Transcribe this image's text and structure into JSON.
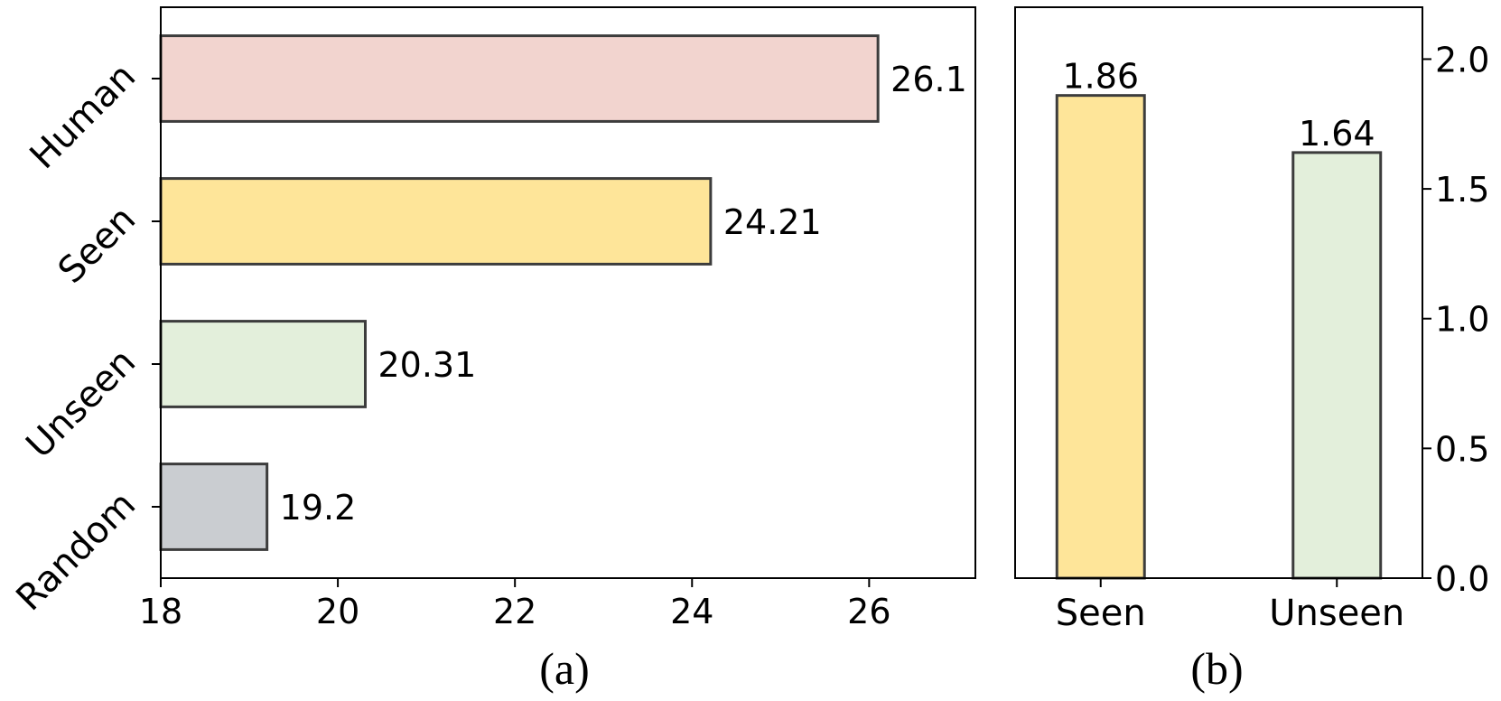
{
  "chart_data": [
    {
      "type": "bar",
      "orientation": "horizontal",
      "caption": "(a)",
      "categories": [
        "Human",
        "Seen",
        "Unseen",
        "Random"
      ],
      "values": [
        26.1,
        24.21,
        20.31,
        19.2
      ],
      "data_labels": [
        "26.1",
        "24.21",
        "20.31",
        "19.2"
      ],
      "colors": [
        "#f2d4cf",
        "#fee599",
        "#e3efdb",
        "#cacdd1"
      ],
      "xlim": [
        18,
        27.2
      ],
      "xticks": [
        18,
        20,
        22,
        24,
        26
      ],
      "xlabel": "",
      "ylabel": "",
      "grid": false,
      "legend": "none"
    },
    {
      "type": "bar",
      "orientation": "vertical",
      "caption": "(b)",
      "categories": [
        "Seen",
        "Unseen"
      ],
      "values": [
        1.86,
        1.64
      ],
      "data_labels": [
        "1.86",
        "1.64"
      ],
      "colors": [
        "#fee599",
        "#e3efdb"
      ],
      "ylim": [
        0,
        2.2
      ],
      "yticks": [
        "0.0",
        "0.5",
        "1.0",
        "1.5",
        "2.0"
      ],
      "yaxis_side": "right",
      "xlabel": "",
      "ylabel": "",
      "grid": false,
      "legend": "none"
    }
  ],
  "style": {
    "edge_color": "#3c3c3c",
    "axis_color": "#000000"
  }
}
